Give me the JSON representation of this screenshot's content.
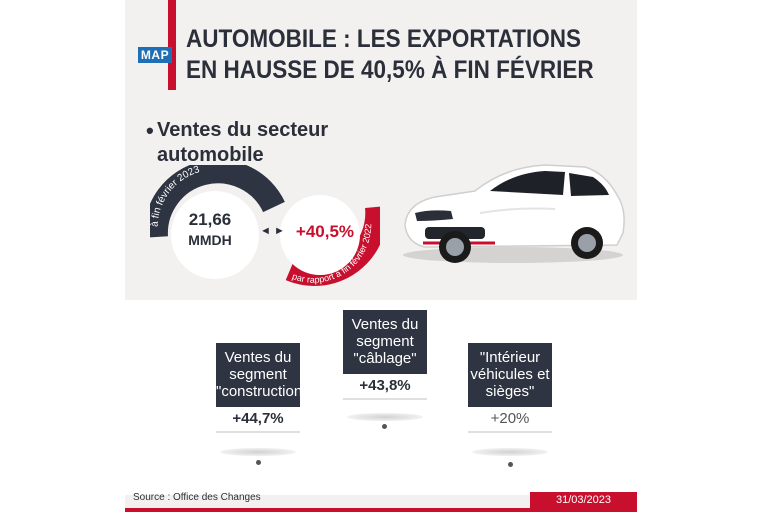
{
  "header": {
    "logo_text": "MAP",
    "title_line1": "AUTOMOBILE : LES EXPORTATIONS",
    "title_line2": "EN HAUSSE DE 40,5% À FIN FÉVRIER"
  },
  "section": {
    "bullet": "•",
    "title": "Ventes du secteur automobile"
  },
  "circles": {
    "left_arc_label": "à fin février 2023",
    "left_value_line1": "21,66",
    "left_value_line2": "MMDH",
    "arrows": "◄ ►",
    "right_value": "+40,5%",
    "right_arc_label": "par rapport à fin février 2022"
  },
  "cards": [
    {
      "label": "Ventes du segment \"construction\"",
      "value": "+44,7%"
    },
    {
      "label": "Ventes du segment \"câblage\"",
      "value": "+43,8%"
    },
    {
      "label": "\"Intérieur véhicules et sièges\"",
      "value": "+20%"
    }
  ],
  "footer": {
    "source": "Source : Office des Changes",
    "date": "31/03/2023"
  },
  "colors": {
    "accent_red": "#c8102e",
    "dark_navy": "#2e3441",
    "logo_blue": "#1f6fb6"
  },
  "icons": [
    "car-image",
    "bullet-dot"
  ]
}
